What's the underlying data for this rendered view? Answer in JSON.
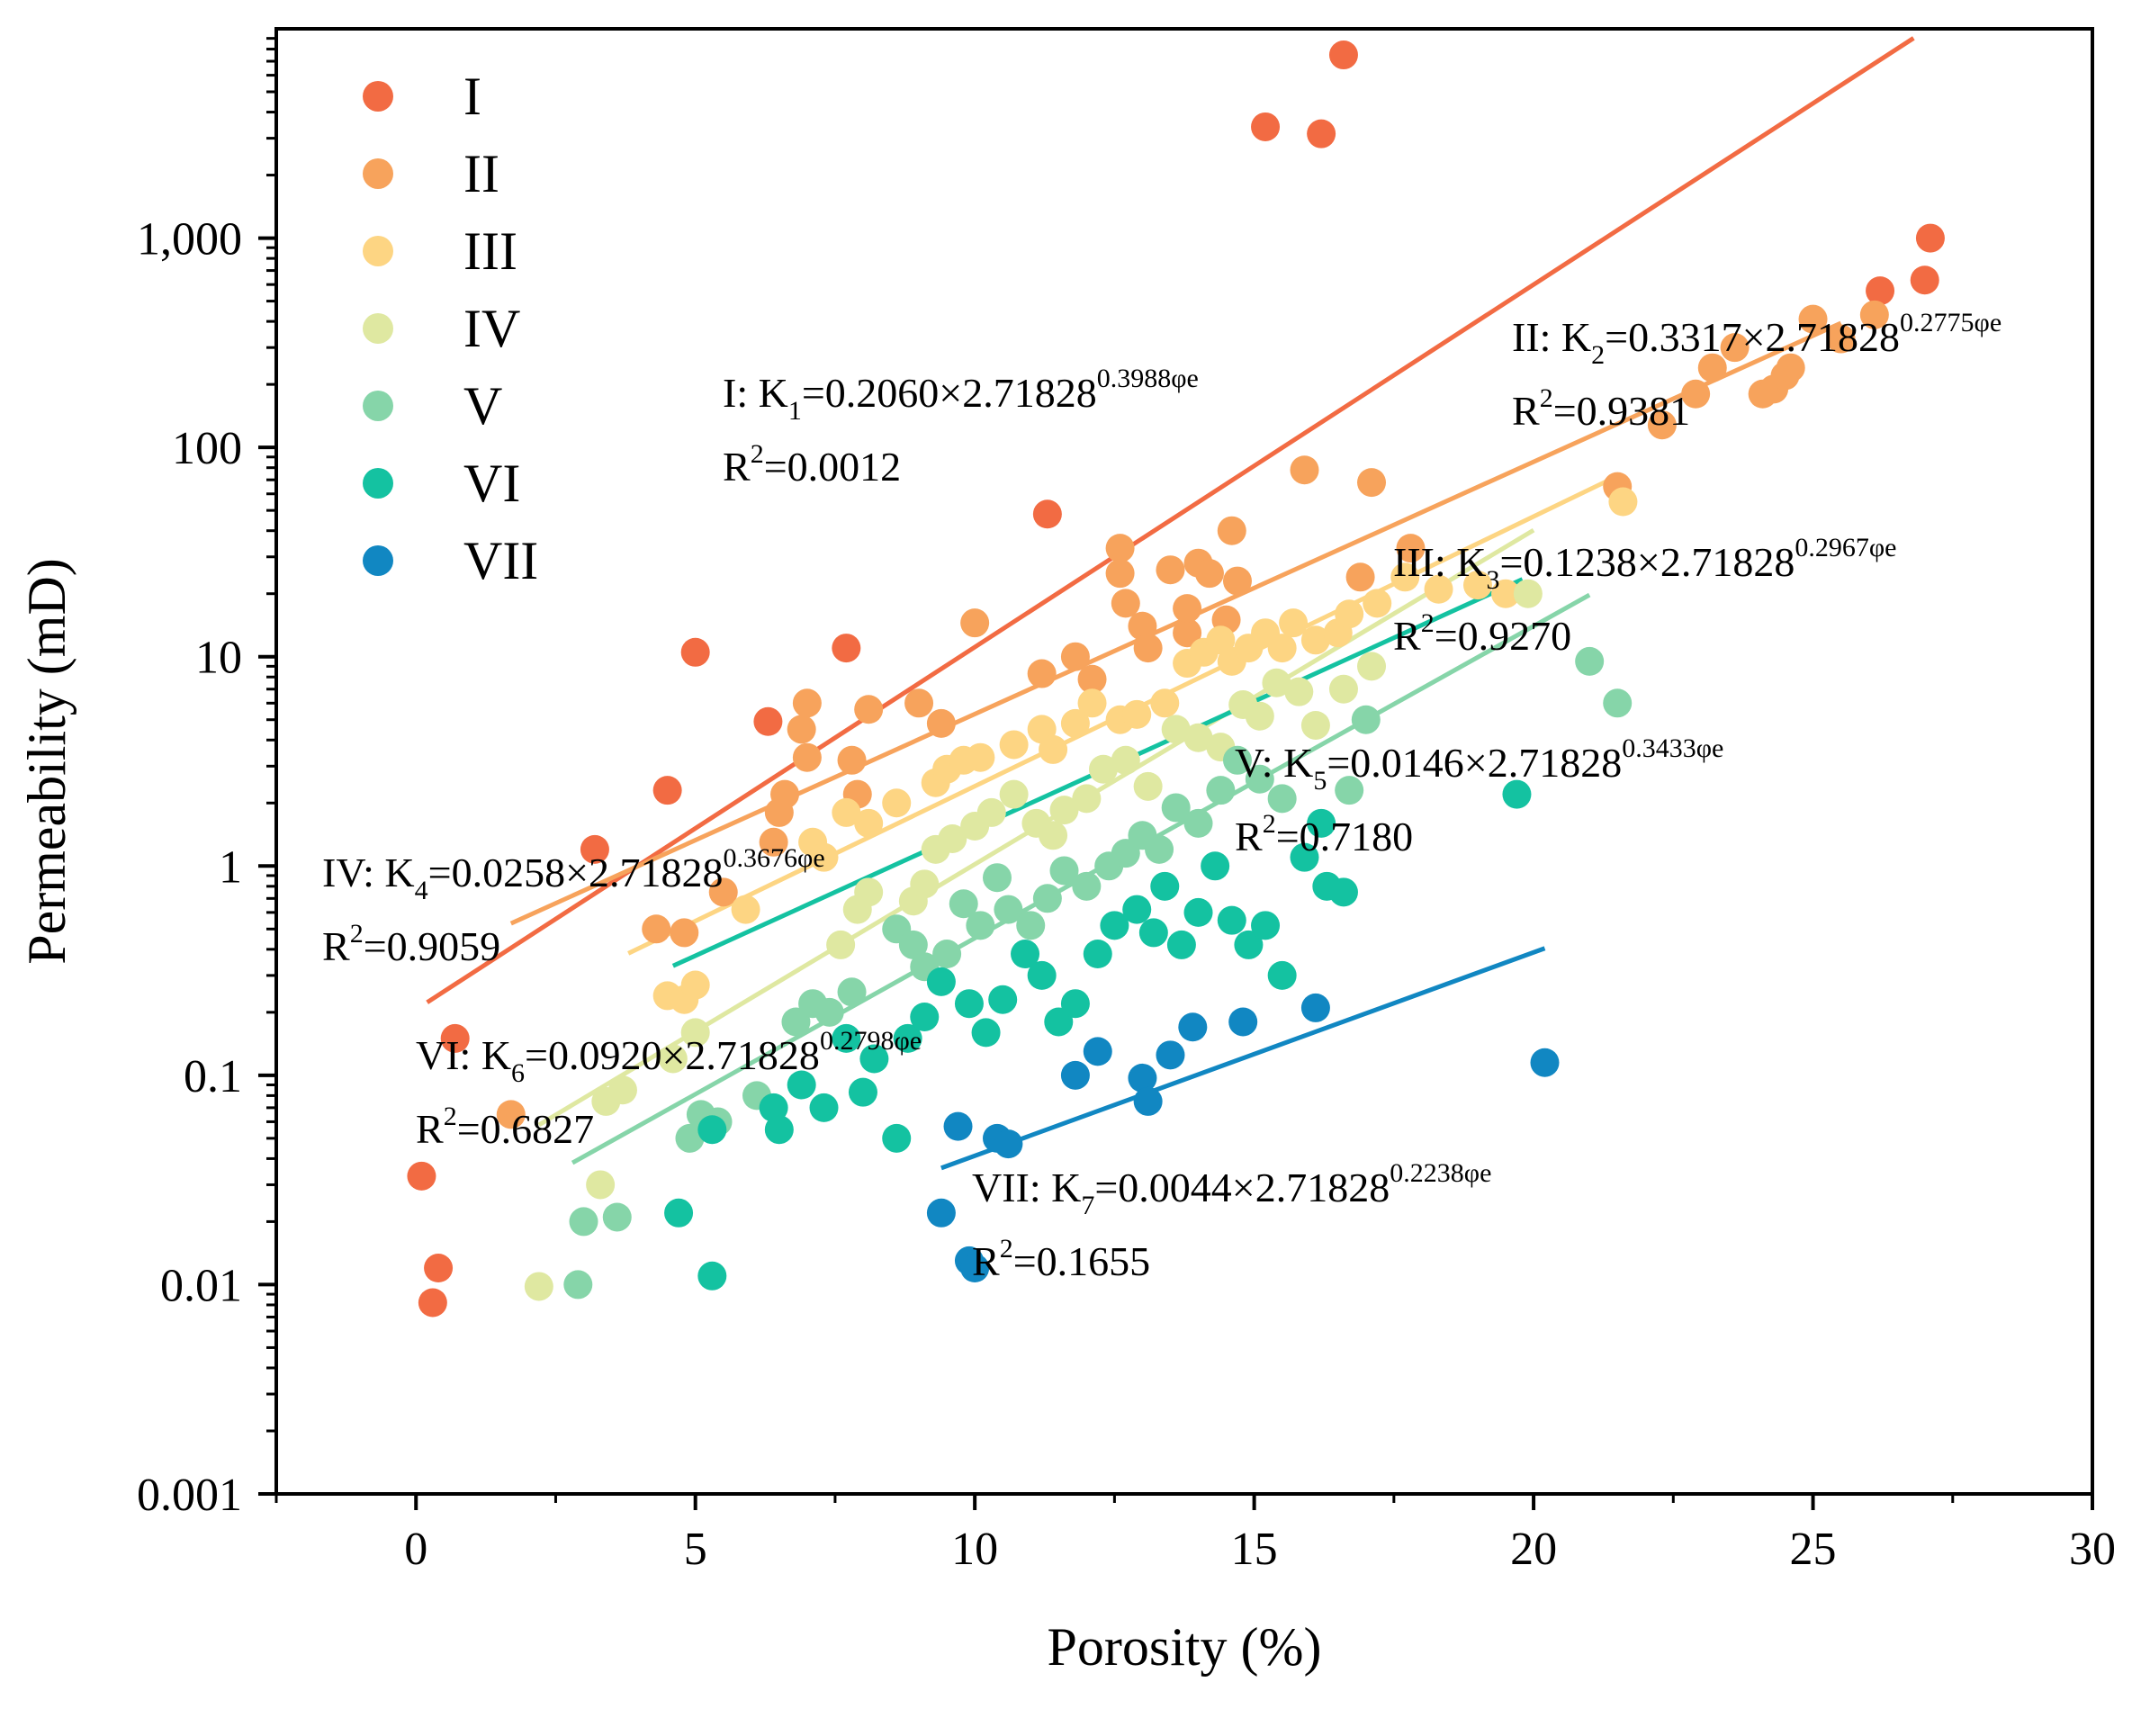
{
  "chart_data": {
    "type": "scatter",
    "title": "",
    "xlabel": "Porosity (%)",
    "ylabel": "Permeability (mD)",
    "xlim": [
      -2.5,
      30
    ],
    "ylim": [
      0.001,
      10000
    ],
    "yscale": "log",
    "x_ticks": [
      0,
      5,
      10,
      15,
      20,
      25,
      30
    ],
    "x_tick_labels": [
      "0",
      "5",
      "10",
      "15",
      "20",
      "25",
      "30"
    ],
    "y_ticks": [
      0.001,
      0.01,
      0.1,
      1,
      10,
      100,
      1000
    ],
    "y_tick_labels": [
      "0.001",
      "0.01",
      "0.1",
      "1",
      "10",
      "100",
      "1,000"
    ],
    "grid": false,
    "legend_position": "top-left",
    "series": [
      {
        "name": "I",
        "color": "#f26b43",
        "fit": {
          "a": 0.206,
          "b": 0.3988,
          "x_range": [
            0.2,
            26.8
          ]
        },
        "equation": {
          "prefix": "I: K",
          "sub": "1",
          "body": "=0.2060×2.71828",
          "sup": "0.3988φe",
          "r2": "=0.0012"
        },
        "points": [
          [
            16.6,
            7500
          ],
          [
            15.2,
            3400
          ],
          [
            16.2,
            3150
          ],
          [
            11.3,
            48
          ],
          [
            5,
            10.5
          ],
          [
            7.7,
            11
          ],
          [
            6.3,
            4.9
          ],
          [
            4.5,
            2.3
          ],
          [
            3.2,
            1.2
          ],
          [
            0.7,
            0.15
          ],
          [
            0.1,
            0.033
          ],
          [
            0.4,
            0.012
          ],
          [
            0.3,
            0.0082
          ],
          [
            27.1,
            1000
          ],
          [
            26.2,
            560
          ],
          [
            27,
            630
          ]
        ]
      },
      {
        "name": "II",
        "color": "#f7a35c",
        "fit": {
          "a": 0.3317,
          "b": 0.2775,
          "x_range": [
            1.7,
            25.5
          ]
        },
        "equation": {
          "prefix": "II: K",
          "sub": "2",
          "body": "=0.3317×2.71828",
          "sup": "0.2775φe",
          "r2": "=0.9381"
        },
        "points": [
          [
            1.7,
            0.065
          ],
          [
            4.3,
            0.5
          ],
          [
            4.8,
            0.48
          ],
          [
            5.5,
            0.75
          ],
          [
            6.4,
            1.3
          ],
          [
            6.6,
            2.2
          ],
          [
            6.5,
            1.8
          ],
          [
            6.9,
            4.5
          ],
          [
            7,
            6
          ],
          [
            7,
            3.3
          ],
          [
            7.8,
            3.2
          ],
          [
            7.9,
            2.2
          ],
          [
            8.1,
            5.6
          ],
          [
            9,
            6
          ],
          [
            9.4,
            4.8
          ],
          [
            10,
            14.5
          ],
          [
            11.2,
            8.3
          ],
          [
            11.8,
            10
          ],
          [
            12.1,
            7.8
          ],
          [
            12.6,
            33
          ],
          [
            12.6,
            25
          ],
          [
            12.7,
            18
          ],
          [
            13,
            14
          ],
          [
            13.1,
            11
          ],
          [
            13.5,
            26
          ],
          [
            13.8,
            13
          ],
          [
            13.8,
            17
          ],
          [
            14,
            28
          ],
          [
            14.2,
            25
          ],
          [
            14.5,
            15
          ],
          [
            14.6,
            40
          ],
          [
            14.7,
            23
          ],
          [
            15.9,
            78
          ],
          [
            17.1,
            68
          ],
          [
            16.9,
            24
          ],
          [
            17.8,
            33
          ],
          [
            21.5,
            65
          ],
          [
            22.3,
            128
          ],
          [
            22.9,
            180
          ],
          [
            23.2,
            240
          ],
          [
            23.6,
            300
          ],
          [
            24.1,
            180
          ],
          [
            24.3,
            190
          ],
          [
            24.5,
            220
          ],
          [
            24.6,
            240
          ],
          [
            25,
            410
          ],
          [
            25.5,
            330
          ],
          [
            26.1,
            430
          ]
        ]
      },
      {
        "name": "III",
        "color": "#fdd583",
        "fit": {
          "a": 0.1238,
          "b": 0.2967,
          "x_range": [
            3.8,
            21.5
          ]
        },
        "equation": {
          "prefix": "III: K",
          "sub": "3",
          "body": "=0.1238×2.71828",
          "sup": "0.2967φe",
          "r2": "=0.9270"
        },
        "points": [
          [
            4.5,
            0.24
          ],
          [
            4.8,
            0.23
          ],
          [
            5,
            0.27
          ],
          [
            5.9,
            0.62
          ],
          [
            7.1,
            1.3
          ],
          [
            7.3,
            1.1
          ],
          [
            7.7,
            1.8
          ],
          [
            8.1,
            1.6
          ],
          [
            8.6,
            2
          ],
          [
            9.3,
            2.5
          ],
          [
            9.5,
            2.9
          ],
          [
            9.8,
            3.2
          ],
          [
            10.1,
            3.3
          ],
          [
            10.7,
            3.8
          ],
          [
            11.2,
            4.5
          ],
          [
            11.4,
            3.6
          ],
          [
            11.8,
            4.8
          ],
          [
            12.1,
            6
          ],
          [
            12.6,
            5
          ],
          [
            12.9,
            5.3
          ],
          [
            13.4,
            6
          ],
          [
            13.8,
            9.3
          ],
          [
            14.1,
            10.5
          ],
          [
            14.4,
            12
          ],
          [
            14.6,
            9.5
          ],
          [
            14.9,
            11
          ],
          [
            15.2,
            13
          ],
          [
            15.5,
            11
          ],
          [
            15.7,
            14.5
          ],
          [
            16.1,
            12
          ],
          [
            16.5,
            13
          ],
          [
            16.7,
            16
          ],
          [
            17.2,
            18
          ],
          [
            17.7,
            24
          ],
          [
            18.3,
            21
          ],
          [
            19,
            22
          ],
          [
            19.5,
            20
          ],
          [
            21.6,
            55
          ]
        ]
      },
      {
        "name": "IV",
        "color": "#dfe8a1",
        "fit": {
          "a": 0.0258,
          "b": 0.3676,
          "x_range": [
            2.2,
            20
          ]
        },
        "equation": {
          "prefix": "IV: K",
          "sub": "4",
          "body": "=0.0258×2.71828",
          "sup": "0.3676φe",
          "r2": "=0.9059"
        },
        "points": [
          [
            2.2,
            0.0098
          ],
          [
            3.3,
            0.03
          ],
          [
            3.4,
            0.075
          ],
          [
            3.7,
            0.085
          ],
          [
            4.6,
            0.12
          ],
          [
            5,
            0.16
          ],
          [
            7.6,
            0.42
          ],
          [
            7.9,
            0.62
          ],
          [
            8.1,
            0.75
          ],
          [
            8.9,
            0.68
          ],
          [
            9.1,
            0.82
          ],
          [
            9.3,
            1.2
          ],
          [
            9.6,
            1.35
          ],
          [
            10,
            1.55
          ],
          [
            10.3,
            1.8
          ],
          [
            10.7,
            2.2
          ],
          [
            11.1,
            1.6
          ],
          [
            11.4,
            1.4
          ],
          [
            11.6,
            1.85
          ],
          [
            12,
            2.1
          ],
          [
            12.3,
            2.9
          ],
          [
            12.7,
            3.2
          ],
          [
            13.1,
            2.4
          ],
          [
            13.6,
            4.5
          ],
          [
            14,
            4.1
          ],
          [
            14.4,
            3.7
          ],
          [
            14.8,
            5.9
          ],
          [
            15.1,
            5.2
          ],
          [
            15.4,
            7.5
          ],
          [
            15.8,
            6.8
          ],
          [
            16.1,
            4.7
          ],
          [
            16.6,
            7
          ],
          [
            17.1,
            9
          ],
          [
            19.9,
            20
          ]
        ]
      },
      {
        "name": "V",
        "color": "#86d5a9",
        "fit": {
          "a": 0.0146,
          "b": 0.3433,
          "x_range": [
            2.8,
            21
          ]
        },
        "equation": {
          "prefix": "V: K",
          "sub": "5",
          "body": "=0.0146×2.71828",
          "sup": "0.3433φe",
          "r2": "=0.7180"
        },
        "points": [
          [
            2.9,
            0.01
          ],
          [
            3,
            0.02
          ],
          [
            3.6,
            0.021
          ],
          [
            4.9,
            0.05
          ],
          [
            5.1,
            0.065
          ],
          [
            5.4,
            0.06
          ],
          [
            6.1,
            0.08
          ],
          [
            6.8,
            0.18
          ],
          [
            7.1,
            0.22
          ],
          [
            7.4,
            0.2
          ],
          [
            7.8,
            0.25
          ],
          [
            8.6,
            0.5
          ],
          [
            8.9,
            0.42
          ],
          [
            9.1,
            0.33
          ],
          [
            9.5,
            0.38
          ],
          [
            9.8,
            0.66
          ],
          [
            10.1,
            0.52
          ],
          [
            10.4,
            0.88
          ],
          [
            10.6,
            0.62
          ],
          [
            11,
            0.52
          ],
          [
            11.3,
            0.7
          ],
          [
            11.6,
            0.95
          ],
          [
            12,
            0.8
          ],
          [
            12.4,
            1
          ],
          [
            12.7,
            1.15
          ],
          [
            13,
            1.4
          ],
          [
            13.3,
            1.2
          ],
          [
            13.6,
            1.9
          ],
          [
            14,
            1.6
          ],
          [
            14.4,
            2.3
          ],
          [
            14.7,
            3.2
          ],
          [
            15.1,
            2.6
          ],
          [
            15.5,
            2.1
          ],
          [
            16.7,
            2.3
          ],
          [
            17,
            5
          ],
          [
            21,
            9.5
          ],
          [
            21.5,
            6
          ]
        ]
      },
      {
        "name": "VI",
        "color": "#14c2a1",
        "fit": {
          "a": 0.092,
          "b": 0.2798,
          "x_range": [
            4.6,
            19.8
          ]
        },
        "equation": {
          "prefix": "VI: K",
          "sub": "6",
          "body": "=0.0920×2.71828",
          "sup": "0.2798φe",
          "r2": "=0.6827"
        },
        "points": [
          [
            4.7,
            0.022
          ],
          [
            5.3,
            0.011
          ],
          [
            5.3,
            0.055
          ],
          [
            6.4,
            0.07
          ],
          [
            6.5,
            0.055
          ],
          [
            6.9,
            0.09
          ],
          [
            7.3,
            0.07
          ],
          [
            7.7,
            0.15
          ],
          [
            8,
            0.083
          ],
          [
            8.2,
            0.12
          ],
          [
            8.6,
            0.05
          ],
          [
            8.8,
            0.15
          ],
          [
            9.1,
            0.19
          ],
          [
            9.4,
            0.28
          ],
          [
            9.9,
            0.22
          ],
          [
            10.2,
            0.16
          ],
          [
            10.5,
            0.23
          ],
          [
            10.9,
            0.38
          ],
          [
            11.2,
            0.3
          ],
          [
            11.5,
            0.18
          ],
          [
            11.8,
            0.22
          ],
          [
            12.2,
            0.38
          ],
          [
            12.5,
            0.52
          ],
          [
            12.9,
            0.62
          ],
          [
            13.2,
            0.48
          ],
          [
            13.4,
            0.8
          ],
          [
            13.7,
            0.42
          ],
          [
            14,
            0.6
          ],
          [
            14.3,
            1
          ],
          [
            14.6,
            0.55
          ],
          [
            14.9,
            0.42
          ],
          [
            15.2,
            0.52
          ],
          [
            15.5,
            0.3
          ],
          [
            15.9,
            1.1
          ],
          [
            16.2,
            1.6
          ],
          [
            16.3,
            0.8
          ],
          [
            16.6,
            0.75
          ],
          [
            19.7,
            2.2
          ]
        ]
      },
      {
        "name": "VII",
        "color": "#1187c2",
        "fit": {
          "a": 0.0044,
          "b": 0.2238,
          "x_range": [
            9.4,
            20.2
          ]
        },
        "equation": {
          "prefix": "VII: K",
          "sub": "7",
          "body": "=0.0044×2.71828",
          "sup": "0.2238φe",
          "r2": "=0.1655"
        },
        "points": [
          [
            9.4,
            0.022
          ],
          [
            9.9,
            0.013
          ],
          [
            10,
            0.012
          ],
          [
            9.7,
            0.057
          ],
          [
            10.4,
            0.05
          ],
          [
            10.6,
            0.047
          ],
          [
            11.8,
            0.1
          ],
          [
            12.2,
            0.13
          ],
          [
            13,
            0.097
          ],
          [
            13.1,
            0.075
          ],
          [
            13.5,
            0.125
          ],
          [
            13.9,
            0.17
          ],
          [
            14.8,
            0.18
          ],
          [
            16.1,
            0.21
          ],
          [
            20.2,
            0.115
          ]
        ]
      }
    ]
  }
}
